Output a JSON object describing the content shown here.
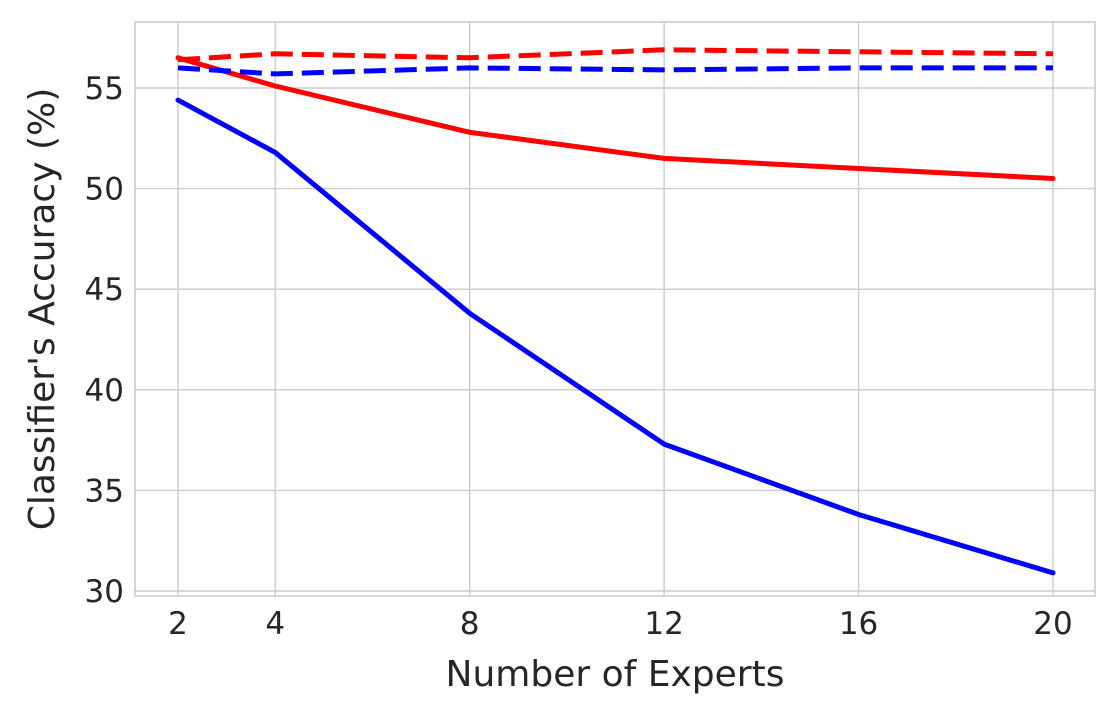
{
  "chart_data": {
    "type": "line",
    "title": "",
    "xlabel": "Number of Experts",
    "ylabel": "Classifier's Accuracy (%)",
    "x": [
      2,
      4,
      8,
      12,
      16,
      20
    ],
    "xticks": [
      2,
      4,
      8,
      12,
      16,
      20
    ],
    "yticks": [
      30,
      35,
      40,
      45,
      50,
      55
    ],
    "xlim": [
      1,
      21
    ],
    "ylim": [
      29.8,
      58.3
    ],
    "grid": true,
    "legend": null,
    "series": [
      {
        "name": "blue-solid",
        "color": "#0000ff",
        "linestyle": "solid",
        "values": [
          54.4,
          51.8,
          43.8,
          37.3,
          33.8,
          30.9
        ]
      },
      {
        "name": "red-solid",
        "color": "#ff0000",
        "linestyle": "solid",
        "values": [
          56.5,
          55.1,
          52.8,
          51.5,
          51.0,
          50.5
        ]
      },
      {
        "name": "red-dashed",
        "color": "#ff0000",
        "linestyle": "dashed",
        "values": [
          56.4,
          56.7,
          56.5,
          56.9,
          56.8,
          56.7
        ]
      },
      {
        "name": "blue-dashed",
        "color": "#0000ff",
        "linestyle": "dashed",
        "values": [
          56.0,
          55.7,
          56.0,
          55.9,
          56.0,
          56.0
        ]
      }
    ]
  }
}
